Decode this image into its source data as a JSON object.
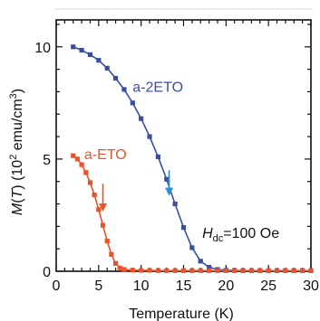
{
  "chart_data": {
    "type": "scatter",
    "xlabel": "Temperature (K)",
    "ylabel_prefix": "M",
    "ylabel_paren_var": "T",
    "ylabel_units_pre": " (10",
    "ylabel_exp": "2",
    "ylabel_units_post": " emu/cm",
    "ylabel_units_exp": "3",
    "ylabel_units_end": ")",
    "xlim": [
      0,
      30
    ],
    "ylim": [
      0,
      11.2
    ],
    "x_ticks": [
      0,
      5,
      10,
      15,
      20,
      25,
      30
    ],
    "x_tick_labels": [
      "0",
      "5",
      "10",
      "15",
      "20",
      "25",
      "30"
    ],
    "y_ticks": [
      0,
      5,
      10
    ],
    "y_tick_labels": [
      "0",
      "5",
      "10"
    ],
    "grid": false,
    "annotation": {
      "H": "H",
      "sub": "dc",
      "text": "=100 Oe",
      "x": 17.2,
      "y": 1.5
    },
    "series": [
      {
        "name": "a-2ETO",
        "color": "#3a4ea0",
        "label_x": 9.0,
        "label_y": 8.0,
        "arrow_x": 13.3,
        "arrow_y_top": 4.5,
        "arrow_y_bottom": 3.4,
        "x": [
          2,
          3,
          4,
          5,
          6,
          7,
          8,
          9,
          10,
          11,
          12,
          13,
          14,
          15,
          16,
          17,
          18,
          19,
          20,
          21,
          22,
          23,
          24,
          25,
          26,
          27,
          28,
          29,
          30
        ],
        "y": [
          10.0,
          9.85,
          9.65,
          9.4,
          9.05,
          8.6,
          8.1,
          7.5,
          6.8,
          6.0,
          5.1,
          4.1,
          3.0,
          1.95,
          1.05,
          0.45,
          0.18,
          0.08,
          0.05,
          0.04,
          0.03,
          0.03,
          0.03,
          0.03,
          0.03,
          0.03,
          0.03,
          0.03,
          0.03
        ]
      },
      {
        "name": "a-ETO",
        "color": "#e8532a",
        "label_x": 3.3,
        "label_y": 5.0,
        "arrow_x": 5.5,
        "arrow_y_top": 3.9,
        "arrow_y_bottom": 2.7,
        "x": [
          2,
          2.5,
          3,
          3.5,
          4,
          4.5,
          5,
          5.5,
          6,
          6.5,
          7,
          7.5,
          8,
          9,
          10,
          11,
          12,
          13,
          14,
          15,
          16,
          17,
          18,
          19,
          20,
          21,
          22,
          23,
          24,
          25,
          26,
          27,
          28,
          29,
          30
        ],
        "y": [
          5.15,
          5.0,
          4.75,
          4.4,
          3.95,
          3.4,
          2.75,
          2.05,
          1.35,
          0.75,
          0.35,
          0.15,
          0.08,
          0.05,
          0.04,
          0.04,
          0.03,
          0.03,
          0.03,
          0.03,
          0.03,
          0.03,
          0.03,
          0.03,
          0.03,
          0.03,
          0.03,
          0.03,
          0.03,
          0.03,
          0.03,
          0.03,
          0.03,
          0.03,
          0.03
        ]
      }
    ]
  }
}
